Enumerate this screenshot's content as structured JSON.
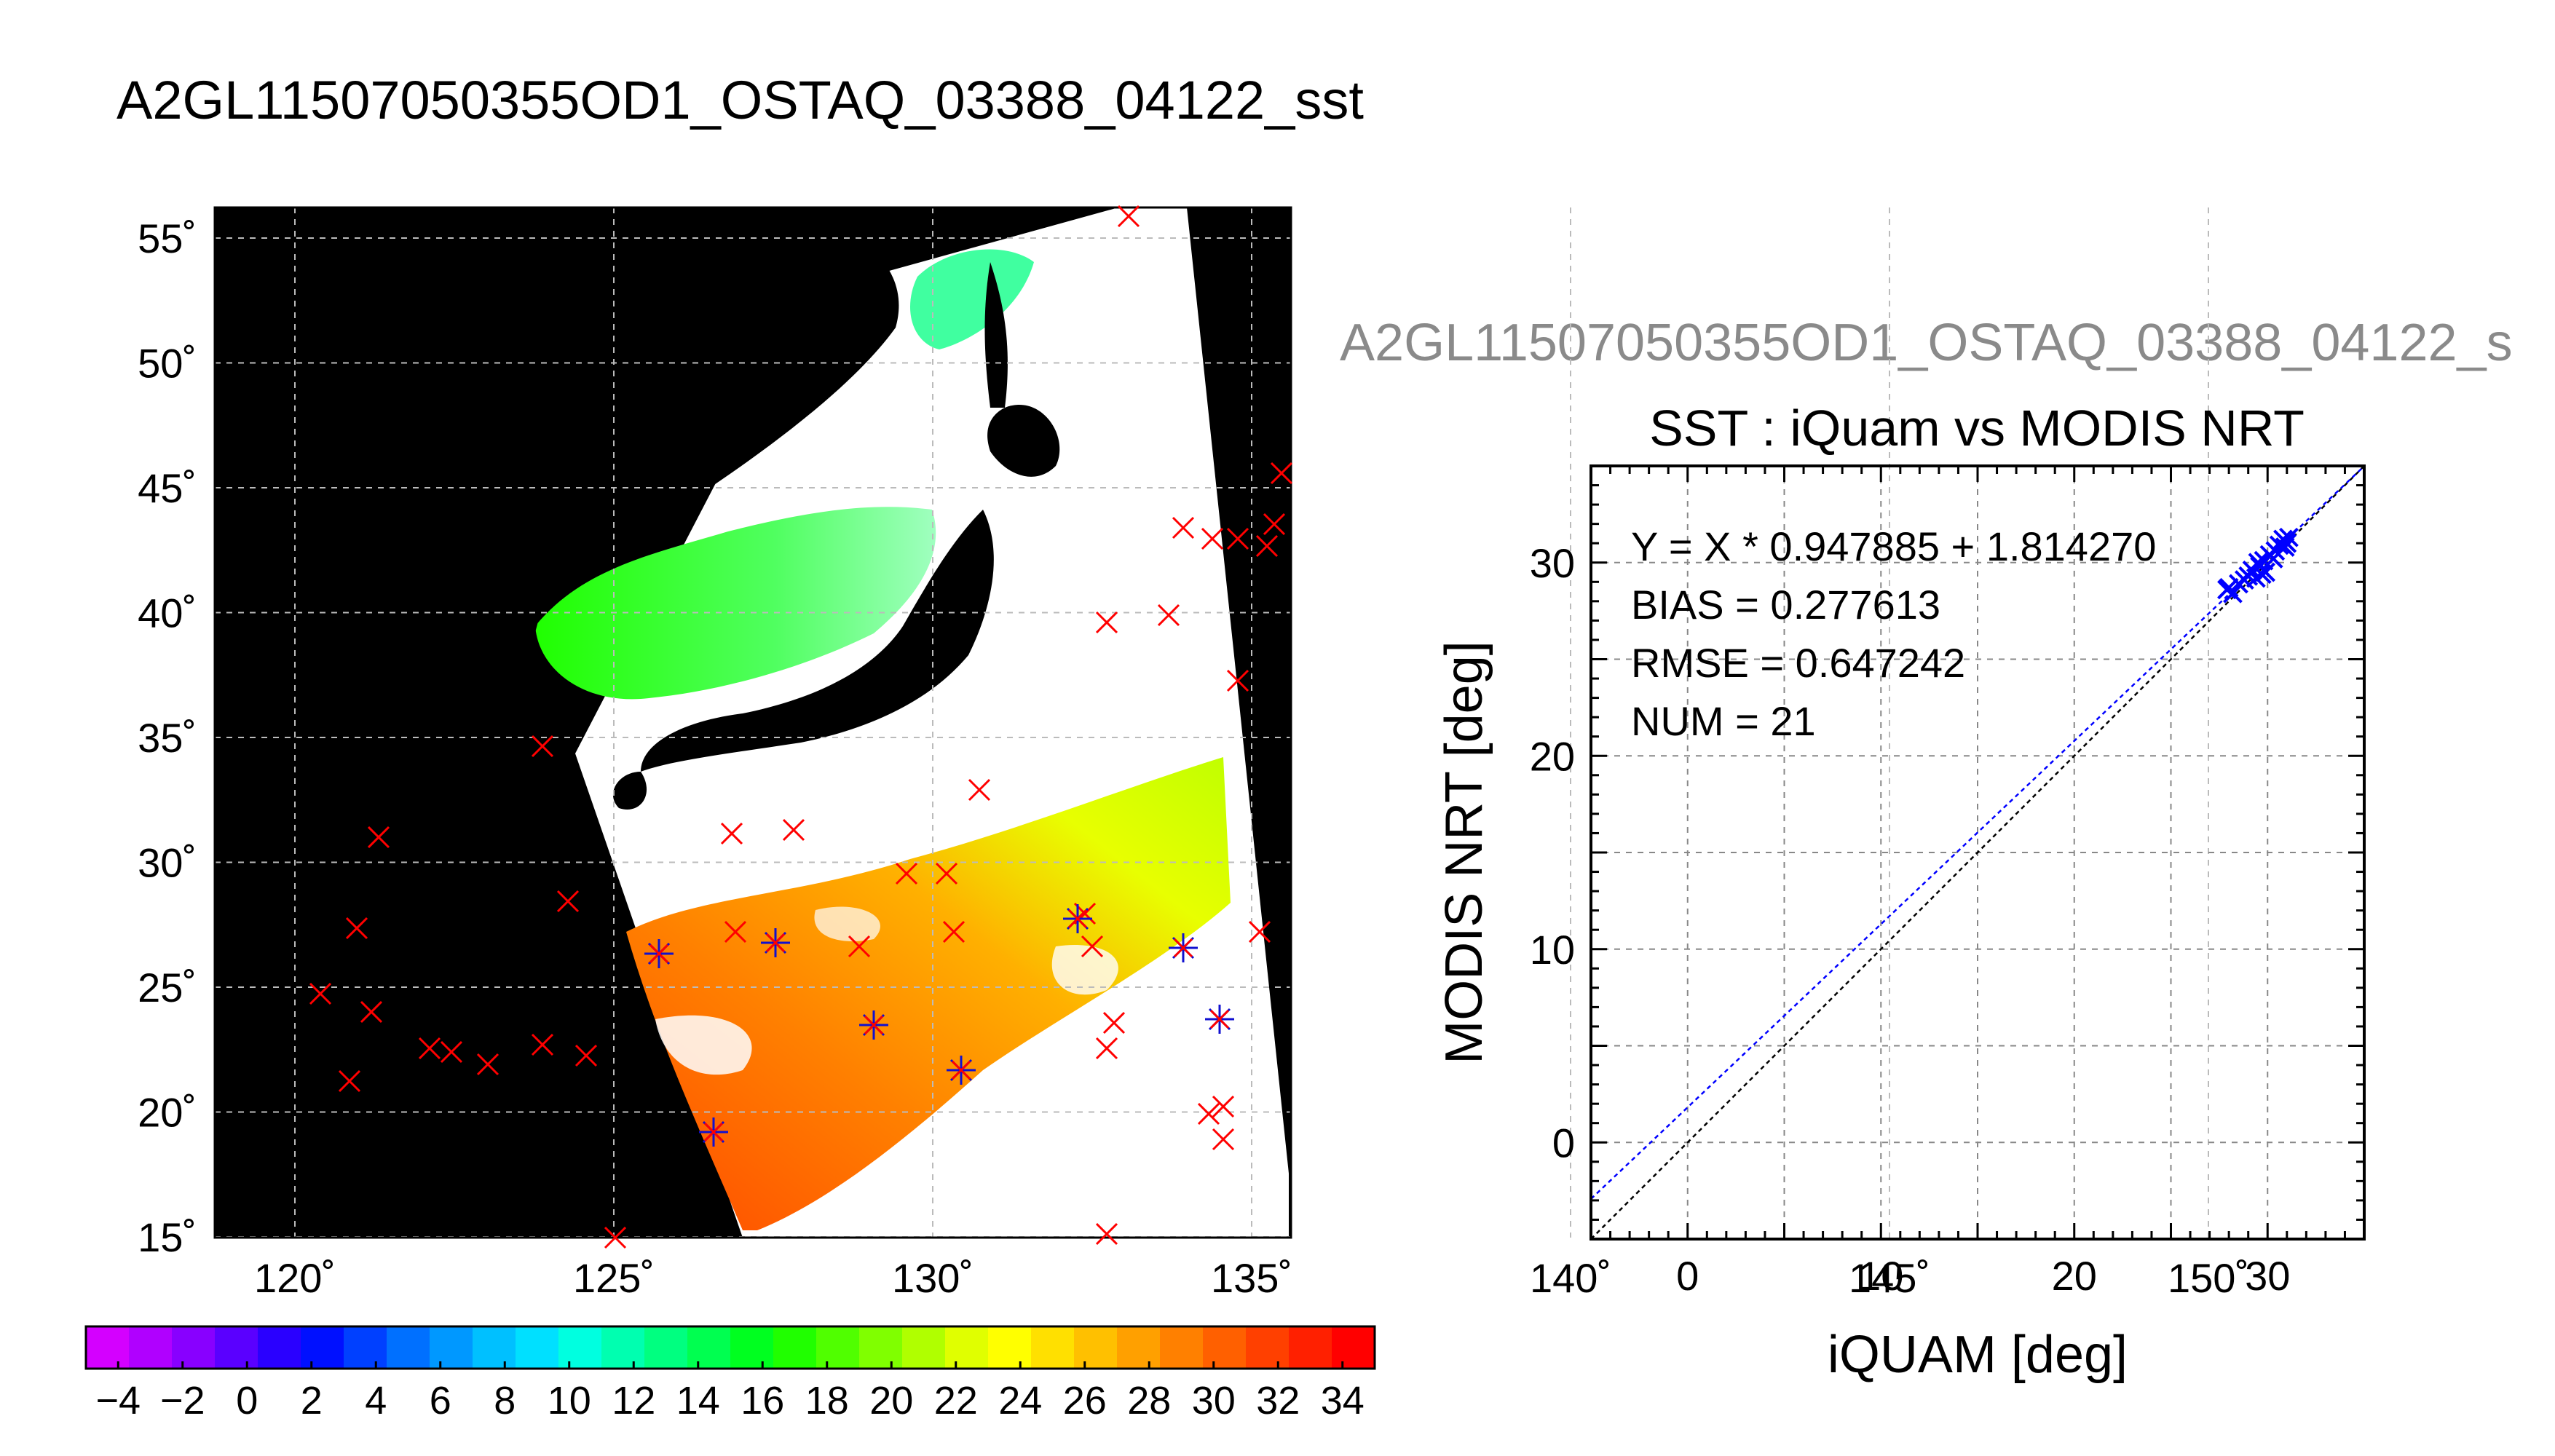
{
  "title": "A2GL11507050355OD1_OSTAQ_03388_04122_sst",
  "subtitle": "A2GL11507050355OD1_OSTAQ_03388_04122_s",
  "map": {
    "lat_ticks": [
      "55˚",
      "50˚",
      "45˚",
      "40˚",
      "35˚",
      "30˚",
      "25˚",
      "20˚",
      "15˚"
    ],
    "lon_ticks": [
      "120˚",
      "125˚",
      "130˚",
      "135˚",
      "140˚",
      "145˚",
      "150˚"
    ],
    "colorbar_ticks": [
      "−4",
      "−2",
      "0",
      "2",
      "4",
      "6",
      "8",
      "10",
      "12",
      "14",
      "16",
      "18",
      "20",
      "22",
      "24",
      "26",
      "28",
      "30",
      "32",
      "34"
    ],
    "colorbar_colors": [
      "#d400ff",
      "#b000ff",
      "#8800ff",
      "#5a00ff",
      "#2a00ff",
      "#0010ff",
      "#0040ff",
      "#0070ff",
      "#0098ff",
      "#00c0ff",
      "#00e0ff",
      "#00ffe0",
      "#00ffb0",
      "#00ff80",
      "#00ff50",
      "#00ff20",
      "#20ff00",
      "#50ff00",
      "#80ff00",
      "#b0ff00",
      "#e0ff00",
      "#ffff00",
      "#ffe000",
      "#ffc000",
      "#ffa000",
      "#ff8000",
      "#ff6000",
      "#ff4000",
      "#ff2000",
      "#ff0000"
    ],
    "marker_colors": {
      "insitu": "#ff0000",
      "matched": "#1010d0"
    }
  },
  "chart_data": {
    "type": "scatter",
    "title": "SST : iQuam vs MODIS NRT",
    "xlabel": "iQUAM [deg]",
    "ylabel": "MODIS NRT [deg]",
    "xlim": [
      -5,
      35
    ],
    "ylim": [
      -5,
      35
    ],
    "xticks": [
      0,
      10,
      20,
      30
    ],
    "yticks": [
      0,
      10,
      20,
      30
    ],
    "grid": true,
    "stats": {
      "fit": "Y = X * 0.947885 + 1.814270",
      "bias": "BIAS = 0.277613",
      "rmse": "RMSE = 0.647242",
      "num": "NUM = 21"
    },
    "fit_line": {
      "slope": 0.947885,
      "intercept": 1.81427,
      "color": "#0000ff"
    },
    "identity_line": {
      "slope": 1,
      "intercept": 0,
      "color": "#000000"
    },
    "points": [
      {
        "x": 27.9,
        "y": 28.6
      },
      {
        "x": 28.2,
        "y": 28.4
      },
      {
        "x": 28.5,
        "y": 28.9
      },
      {
        "x": 29.0,
        "y": 29.3
      },
      {
        "x": 29.2,
        "y": 29.6
      },
      {
        "x": 29.4,
        "y": 29.2
      },
      {
        "x": 29.6,
        "y": 29.8
      },
      {
        "x": 29.8,
        "y": 30.1
      },
      {
        "x": 29.9,
        "y": 29.5
      },
      {
        "x": 30.1,
        "y": 30.4
      },
      {
        "x": 30.3,
        "y": 30.2
      },
      {
        "x": 30.6,
        "y": 30.9
      },
      {
        "x": 30.8,
        "y": 31.2
      },
      {
        "x": 31.0,
        "y": 31.0
      },
      {
        "x": 29.5,
        "y": 30.0
      },
      {
        "x": 28.8,
        "y": 29.1
      },
      {
        "x": 30.4,
        "y": 30.6
      },
      {
        "x": 29.7,
        "y": 29.4
      },
      {
        "x": 30.9,
        "y": 30.8
      },
      {
        "x": 31.1,
        "y": 31.3
      },
      {
        "x": 28.0,
        "y": 28.7
      }
    ]
  }
}
